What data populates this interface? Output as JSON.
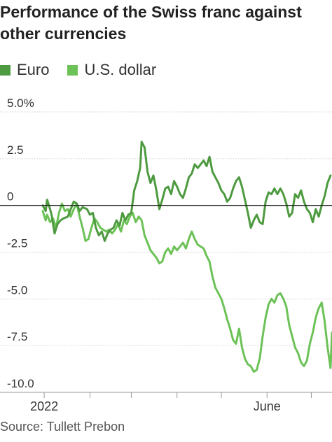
{
  "title": "Performance of the Swiss franc against other currencies",
  "source": "Source: Tullett Prebon",
  "colors": {
    "euro": "#4e9a40",
    "usd": "#6cc257",
    "grid": "#cfcfcf",
    "zero": "#222222",
    "text": "#333333"
  },
  "chart_data": {
    "type": "line",
    "ylim": [
      -10,
      5
    ],
    "y_ticks": [
      {
        "value": 5,
        "label": "5.0%"
      },
      {
        "value": 2.5,
        "label": "2.5"
      },
      {
        "value": 0,
        "label": "0"
      },
      {
        "value": -2.5,
        "label": "-2.5"
      },
      {
        "value": -5,
        "label": "-5.0"
      },
      {
        "value": -7.5,
        "label": "-7.5"
      },
      {
        "value": -10,
        "label": "-10.0"
      }
    ],
    "x_range": [
      "2021-12-31",
      "2022-07-15"
    ],
    "x_ticks": [
      {
        "date": "2022-01-01",
        "label": "2022"
      },
      {
        "date": "2022-02-01",
        "label": ""
      },
      {
        "date": "2022-03-01",
        "label": ""
      },
      {
        "date": "2022-04-01",
        "label": ""
      },
      {
        "date": "2022-05-01",
        "label": ""
      },
      {
        "date": "2022-06-01",
        "label": "June"
      },
      {
        "date": "2022-07-01",
        "label": ""
      }
    ],
    "grid": true,
    "legend_position": "top-left",
    "series": [
      {
        "name": "Euro",
        "color": "#4e9a40",
        "points": [
          [
            "2021-12-31",
            0
          ],
          [
            "2022-01-02",
            -0.3
          ],
          [
            "2022-01-03",
            0.3
          ],
          [
            "2022-01-05",
            -0.2
          ],
          [
            "2022-01-06",
            -0.5
          ],
          [
            "2022-01-08",
            -1.5
          ],
          [
            "2022-01-10",
            -1.0
          ],
          [
            "2022-01-12",
            -0.8
          ],
          [
            "2022-01-14",
            -0.7
          ],
          [
            "2022-01-17",
            -0.6
          ],
          [
            "2022-01-19",
            -0.2
          ],
          [
            "2022-01-21",
            0.2
          ],
          [
            "2022-01-23",
            0.1
          ],
          [
            "2022-01-25",
            -0.3
          ],
          [
            "2022-01-27",
            -0.1
          ],
          [
            "2022-01-30",
            -0.2
          ],
          [
            "2022-02-01",
            -0.5
          ],
          [
            "2022-02-03",
            -0.4
          ],
          [
            "2022-02-05",
            -1.2
          ],
          [
            "2022-02-07",
            -1.6
          ],
          [
            "2022-02-09",
            -1.4
          ],
          [
            "2022-02-11",
            -1.9
          ],
          [
            "2022-02-13",
            -1.5
          ],
          [
            "2022-02-15",
            -1.3
          ],
          [
            "2022-02-17",
            -1.2
          ],
          [
            "2022-02-19",
            -0.8
          ],
          [
            "2022-02-21",
            -1.1
          ],
          [
            "2022-02-23",
            -0.4
          ],
          [
            "2022-02-25",
            -0.8
          ],
          [
            "2022-02-27",
            -0.5
          ],
          [
            "2022-03-01",
            -0.4
          ],
          [
            "2022-03-03",
            0.8
          ],
          [
            "2022-03-05",
            1.3
          ],
          [
            "2022-03-07",
            2.0
          ],
          [
            "2022-03-08",
            3.4
          ],
          [
            "2022-03-10",
            3.1
          ],
          [
            "2022-03-12",
            1.8
          ],
          [
            "2022-03-14",
            1.2
          ],
          [
            "2022-03-16",
            1.6
          ],
          [
            "2022-03-18",
            0.8
          ],
          [
            "2022-03-20",
            -0.2
          ],
          [
            "2022-03-22",
            0.3
          ],
          [
            "2022-03-24",
            0.9
          ],
          [
            "2022-03-26",
            1.0
          ],
          [
            "2022-03-28",
            0.6
          ],
          [
            "2022-03-30",
            1.3
          ],
          [
            "2022-04-01",
            1.0
          ],
          [
            "2022-04-03",
            0.6
          ],
          [
            "2022-04-05",
            0.4
          ],
          [
            "2022-04-07",
            0.9
          ],
          [
            "2022-04-09",
            1.5
          ],
          [
            "2022-04-11",
            1.7
          ],
          [
            "2022-04-13",
            2.2
          ],
          [
            "2022-04-15",
            2.0
          ],
          [
            "2022-04-17",
            2.2
          ],
          [
            "2022-04-19",
            2.4
          ],
          [
            "2022-04-21",
            2.1
          ],
          [
            "2022-04-23",
            2.6
          ],
          [
            "2022-04-25",
            1.8
          ],
          [
            "2022-04-27",
            1.5
          ],
          [
            "2022-04-29",
            1.2
          ],
          [
            "2022-05-01",
            0.8
          ],
          [
            "2022-05-03",
            0.6
          ],
          [
            "2022-05-05",
            0.2
          ],
          [
            "2022-05-07",
            0.4
          ],
          [
            "2022-05-09",
            0.9
          ],
          [
            "2022-05-11",
            1.3
          ],
          [
            "2022-05-13",
            1.5
          ],
          [
            "2022-05-15",
            1.0
          ],
          [
            "2022-05-17",
            0.3
          ],
          [
            "2022-05-19",
            -0.4
          ],
          [
            "2022-05-21",
            -1.2
          ],
          [
            "2022-05-23",
            -0.8
          ],
          [
            "2022-05-25",
            -0.5
          ],
          [
            "2022-05-27",
            -0.9
          ],
          [
            "2022-05-29",
            -1.0
          ],
          [
            "2022-05-31",
            0.2
          ],
          [
            "2022-06-02",
            0.7
          ],
          [
            "2022-06-04",
            0.6
          ],
          [
            "2022-06-06",
            0.9
          ],
          [
            "2022-06-08",
            0.6
          ],
          [
            "2022-06-10",
            0.9
          ],
          [
            "2022-06-12",
            0.6
          ],
          [
            "2022-06-14",
            0.1
          ],
          [
            "2022-06-16",
            -0.6
          ],
          [
            "2022-06-18",
            -0.4
          ],
          [
            "2022-06-20",
            0.6
          ],
          [
            "2022-06-22",
            0.4
          ],
          [
            "2022-06-24",
            0.8
          ],
          [
            "2022-06-26",
            0.2
          ],
          [
            "2022-06-28",
            -0.2
          ],
          [
            "2022-06-30",
            -0.4
          ],
          [
            "2022-07-02",
            -0.9
          ],
          [
            "2022-07-04",
            -0.2
          ],
          [
            "2022-07-06",
            -0.6
          ],
          [
            "2022-07-08",
            0.0
          ],
          [
            "2022-07-10",
            0.5
          ],
          [
            "2022-07-12",
            1.2
          ],
          [
            "2022-07-14",
            1.6
          ]
        ]
      },
      {
        "name": "U.S. dollar",
        "color": "#6cc257",
        "points": [
          [
            "2021-12-31",
            -0.3
          ],
          [
            "2022-01-02",
            -0.8
          ],
          [
            "2022-01-03",
            -0.5
          ],
          [
            "2022-01-05",
            -0.9
          ],
          [
            "2022-01-07",
            -0.7
          ],
          [
            "2022-01-09",
            -1.2
          ],
          [
            "2022-01-11",
            -0.4
          ],
          [
            "2022-01-13",
            0.1
          ],
          [
            "2022-01-15",
            -0.3
          ],
          [
            "2022-01-17",
            -0.2
          ],
          [
            "2022-01-19",
            -0.6
          ],
          [
            "2022-01-21",
            -0.2
          ],
          [
            "2022-01-23",
            0.1
          ],
          [
            "2022-01-25",
            -0.6
          ],
          [
            "2022-01-27",
            -1.2
          ],
          [
            "2022-01-29",
            -1.9
          ],
          [
            "2022-01-31",
            -1.8
          ],
          [
            "2022-02-02",
            -1.2
          ],
          [
            "2022-02-04",
            -0.7
          ],
          [
            "2022-02-06",
            -0.9
          ],
          [
            "2022-02-08",
            -1.2
          ],
          [
            "2022-02-10",
            -1.3
          ],
          [
            "2022-02-12",
            -1.4
          ],
          [
            "2022-02-14",
            -1.3
          ],
          [
            "2022-02-16",
            -1.5
          ],
          [
            "2022-02-18",
            -1.3
          ],
          [
            "2022-02-20",
            -1.0
          ],
          [
            "2022-02-22",
            -1.4
          ],
          [
            "2022-02-24",
            -0.8
          ],
          [
            "2022-02-26",
            -1.0
          ],
          [
            "2022-02-28",
            -0.6
          ],
          [
            "2022-03-02",
            -0.4
          ],
          [
            "2022-03-04",
            -0.9
          ],
          [
            "2022-03-06",
            -0.6
          ],
          [
            "2022-03-08",
            -0.8
          ],
          [
            "2022-03-10",
            -1.6
          ],
          [
            "2022-03-12",
            -2.0
          ],
          [
            "2022-03-14",
            -2.4
          ],
          [
            "2022-03-16",
            -2.6
          ],
          [
            "2022-03-18",
            -2.8
          ],
          [
            "2022-03-20",
            -3.1
          ],
          [
            "2022-03-22",
            -3.0
          ],
          [
            "2022-03-24",
            -2.5
          ],
          [
            "2022-03-26",
            -2.3
          ],
          [
            "2022-03-28",
            -2.6
          ],
          [
            "2022-03-30",
            -2.2
          ],
          [
            "2022-04-01",
            -2.4
          ],
          [
            "2022-04-03",
            -2.2
          ],
          [
            "2022-04-05",
            -2.0
          ],
          [
            "2022-04-07",
            -2.3
          ],
          [
            "2022-04-09",
            -1.8
          ],
          [
            "2022-04-11",
            -1.4
          ],
          [
            "2022-04-13",
            -1.8
          ],
          [
            "2022-04-15",
            -2.1
          ],
          [
            "2022-04-17",
            -2.2
          ],
          [
            "2022-04-19",
            -2.3
          ],
          [
            "2022-04-21",
            -2.7
          ],
          [
            "2022-04-23",
            -3.0
          ],
          [
            "2022-04-25",
            -3.8
          ],
          [
            "2022-04-27",
            -4.4
          ],
          [
            "2022-04-29",
            -4.7
          ],
          [
            "2022-05-01",
            -5.0
          ],
          [
            "2022-05-03",
            -5.5
          ],
          [
            "2022-05-05",
            -6.1
          ],
          [
            "2022-05-07",
            -6.6
          ],
          [
            "2022-05-09",
            -7.2
          ],
          [
            "2022-05-11",
            -7.4
          ],
          [
            "2022-05-13",
            -6.6
          ],
          [
            "2022-05-15",
            -7.6
          ],
          [
            "2022-05-17",
            -8.2
          ],
          [
            "2022-05-19",
            -8.5
          ],
          [
            "2022-05-21",
            -8.6
          ],
          [
            "2022-05-23",
            -8.9
          ],
          [
            "2022-05-25",
            -8.8
          ],
          [
            "2022-05-27",
            -8.2
          ],
          [
            "2022-05-29",
            -7.0
          ],
          [
            "2022-05-31",
            -6.0
          ],
          [
            "2022-06-02",
            -5.3
          ],
          [
            "2022-06-04",
            -5.0
          ],
          [
            "2022-06-06",
            -5.2
          ],
          [
            "2022-06-08",
            -4.8
          ],
          [
            "2022-06-10",
            -4.7
          ],
          [
            "2022-06-12",
            -5.0
          ],
          [
            "2022-06-14",
            -5.4
          ],
          [
            "2022-06-16",
            -6.4
          ],
          [
            "2022-06-18",
            -7.0
          ],
          [
            "2022-06-20",
            -7.6
          ],
          [
            "2022-06-22",
            -7.9
          ],
          [
            "2022-06-24",
            -8.4
          ],
          [
            "2022-06-26",
            -8.6
          ],
          [
            "2022-06-28",
            -8.3
          ],
          [
            "2022-06-30",
            -7.4
          ],
          [
            "2022-07-02",
            -6.8
          ],
          [
            "2022-07-04",
            -6.0
          ],
          [
            "2022-07-06",
            -5.5
          ],
          [
            "2022-07-08",
            -5.2
          ],
          [
            "2022-07-10",
            -6.2
          ],
          [
            "2022-07-12",
            -7.6
          ],
          [
            "2022-07-14",
            -8.7
          ],
          [
            "2022-07-15",
            -6.8
          ]
        ]
      }
    ]
  }
}
